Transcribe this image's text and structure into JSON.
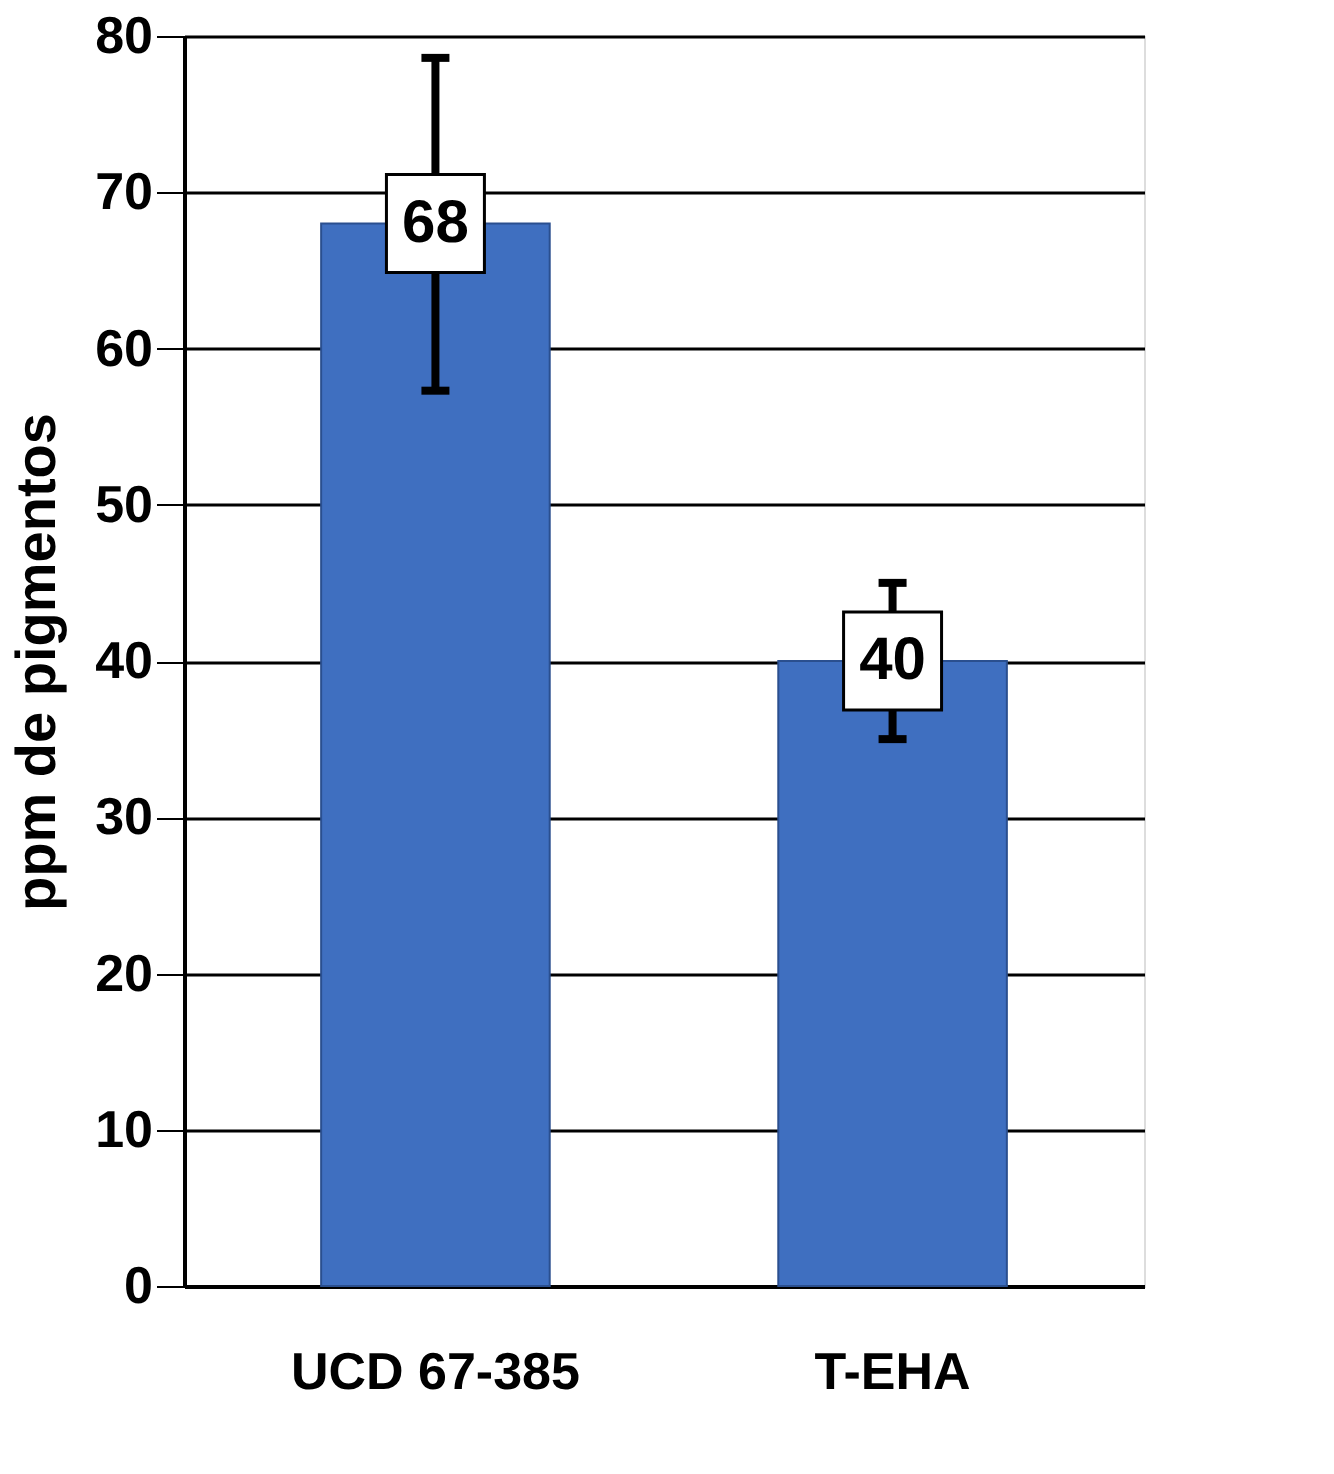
{
  "chart_data": {
    "type": "bar",
    "ylabel": "ppm de pigmentos",
    "categories": [
      "UCD 67-385",
      "T-EHA"
    ],
    "values": [
      68,
      40
    ],
    "color": "#3f6fc0",
    "errors": [
      [
        57.3,
        78.6
      ],
      [
        35,
        45
      ]
    ],
    "data_labels": true,
    "ylim": [
      0,
      80
    ],
    "yticks": [
      0,
      10,
      20,
      30,
      40,
      50,
      60,
      70,
      80
    ],
    "grid": "y"
  }
}
